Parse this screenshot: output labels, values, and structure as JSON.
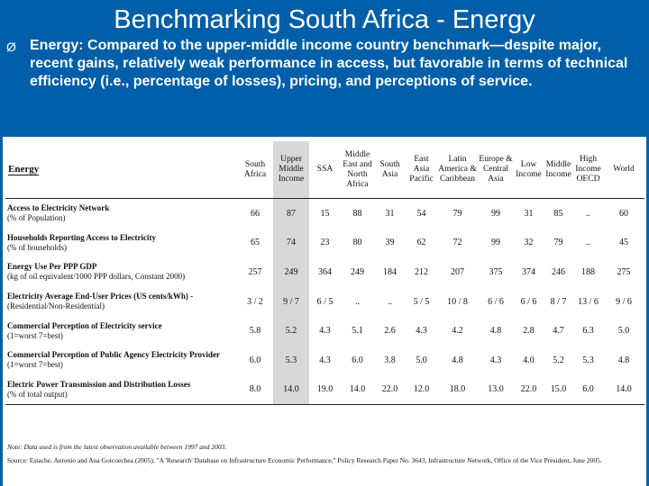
{
  "title": "Benchmarking South Africa - Energy",
  "bullet": "Ø",
  "summary": "Energy: Compared to the upper-middle income country benchmark—despite major, recent gains, relatively weak performance in access, but favorable in terms of technical efficiency (i.e., percentage of losses), pricing, and perceptions of service.",
  "table": {
    "heading": "Energy",
    "columns": [
      "South Africa",
      "Upper Middle Income",
      "SSA",
      "Middle East and North Africa",
      "South Asia",
      "East Asia Pacific",
      "Latin America & Caribbean",
      "Europe & Central Asia",
      "Low Income",
      "Middle Income",
      "High Income OECD",
      "World"
    ],
    "rows": [
      {
        "label": "Access to Electricity Network",
        "sub": "(% of Population)",
        "values": [
          "66",
          "87",
          "15",
          "88",
          "31",
          "54",
          "79",
          "99",
          "31",
          "85",
          "..",
          "60"
        ]
      },
      {
        "label": "Households Reporting Access to Electricity",
        "sub": "(% of households)",
        "values": [
          "65",
          "74",
          "23",
          "80",
          "39",
          "62",
          "72",
          "99",
          "32",
          "79",
          "..",
          "45"
        ]
      },
      {
        "label": "Energy Use Per PPP GDP",
        "sub": "(kg of oil equivalent/1000 PPP dollars, Constant 2000)",
        "values": [
          "257",
          "249",
          "364",
          "249",
          "184",
          "212",
          "207",
          "375",
          "374",
          "246",
          "188",
          "275"
        ]
      },
      {
        "label": "Electricity Average End-User Prices (US cents/kWh) -",
        "sub": "(Residential/Non-Residential)",
        "values": [
          "3 / 2",
          "9 / 7",
          "6 / 5",
          "..",
          "..",
          "5 / 5",
          "10 / 8",
          "6 / 6",
          "6 / 6",
          "8 / 7",
          "13 / 6",
          "9 / 6"
        ]
      },
      {
        "label": "Commercial Perception of Electricity service",
        "sub": "(1=worst 7=best)",
        "values": [
          "5.8",
          "5.2",
          "4.3",
          "5.1",
          "2.6",
          "4.3",
          "4.2",
          "4.8",
          "2.8",
          "4.7",
          "6.3",
          "5.0"
        ]
      },
      {
        "label": "Commercial Perception of Public Agency Electricity Provider",
        "sub": "(1=worst 7=best)",
        "values": [
          "6.0",
          "5.3",
          "4.3",
          "6.0",
          "3.8",
          "5.0",
          "4.8",
          "4.3",
          "4.0",
          "5.2",
          "5.3",
          "4.8"
        ]
      },
      {
        "label": "Electric Power Transmission and Distribution Losses",
        "sub": "(% of total output)",
        "values": [
          "8.0",
          "14.0",
          "19.0",
          "14.0",
          "22.0",
          "12.0",
          "18.0",
          "13.0",
          "22.0",
          "15.0",
          "6.0",
          "14.0"
        ]
      }
    ],
    "note": "Note: Data used is from the latest observation available between 1997 and 2003.",
    "source": "Source: Estache, Antonio and Ana Goicoechea (2005). \"A 'Research' Database on Infrastructure Economic Performance,\" Policy Research Paper No. 3643, Infrastructure Network, Office of the Vice President, June 2005."
  }
}
